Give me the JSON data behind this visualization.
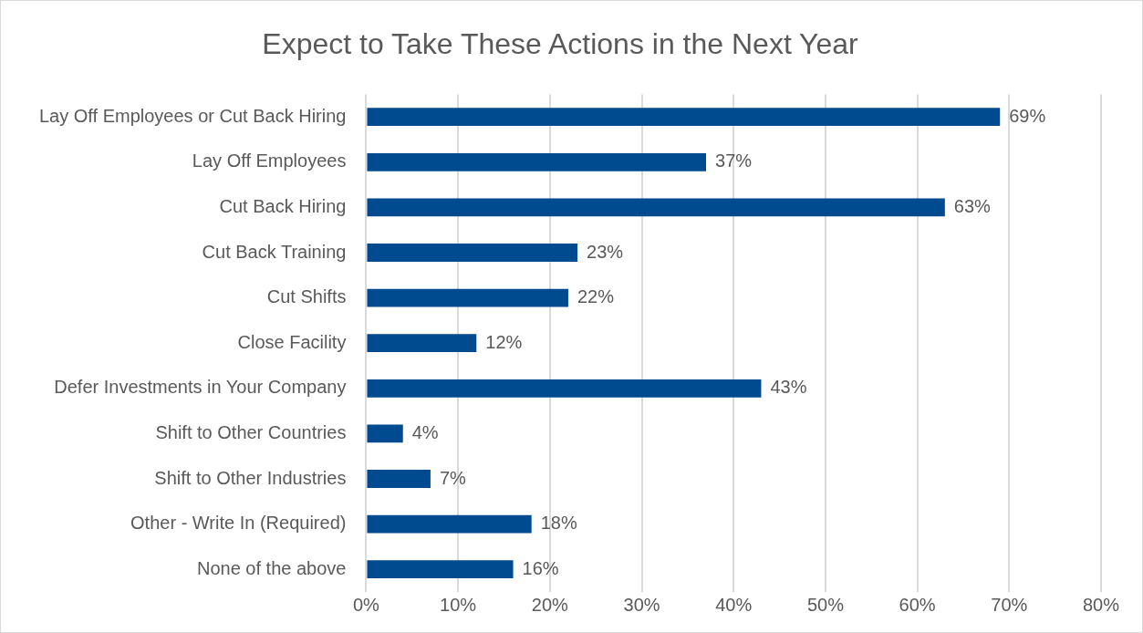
{
  "chart_data": {
    "type": "bar",
    "orientation": "horizontal",
    "title": "Expect to Take These Actions in the Next Year",
    "categories": [
      "Lay Off Employees or Cut Back Hiring",
      "Lay Off Employees",
      "Cut Back Hiring",
      "Cut Back Training",
      "Cut Shifts",
      "Close Facility",
      "Defer Investments in Your Company",
      "Shift to Other Countries",
      "Shift to Other Industries",
      "Other - Write In (Required)",
      "None of the above"
    ],
    "values": [
      69,
      37,
      63,
      23,
      22,
      12,
      43,
      4,
      7,
      18,
      16
    ],
    "value_labels": [
      "69%",
      "37%",
      "63%",
      "23%",
      "22%",
      "12%",
      "43%",
      "4%",
      "7%",
      "18%",
      "16%"
    ],
    "color": "#004a8f",
    "xlim": [
      0,
      80
    ],
    "xticks": [
      {
        "value": 0,
        "label": "0%"
      },
      {
        "value": 10,
        "label": "10%"
      },
      {
        "value": 20,
        "label": "20%"
      },
      {
        "value": 30,
        "label": "30%"
      },
      {
        "value": 40,
        "label": "40%"
      },
      {
        "value": 50,
        "label": "50%"
      },
      {
        "value": 60,
        "label": "60%"
      },
      {
        "value": 70,
        "label": "70%"
      },
      {
        "value": 80,
        "label": "80%"
      }
    ],
    "grid": "x",
    "legend": false
  }
}
